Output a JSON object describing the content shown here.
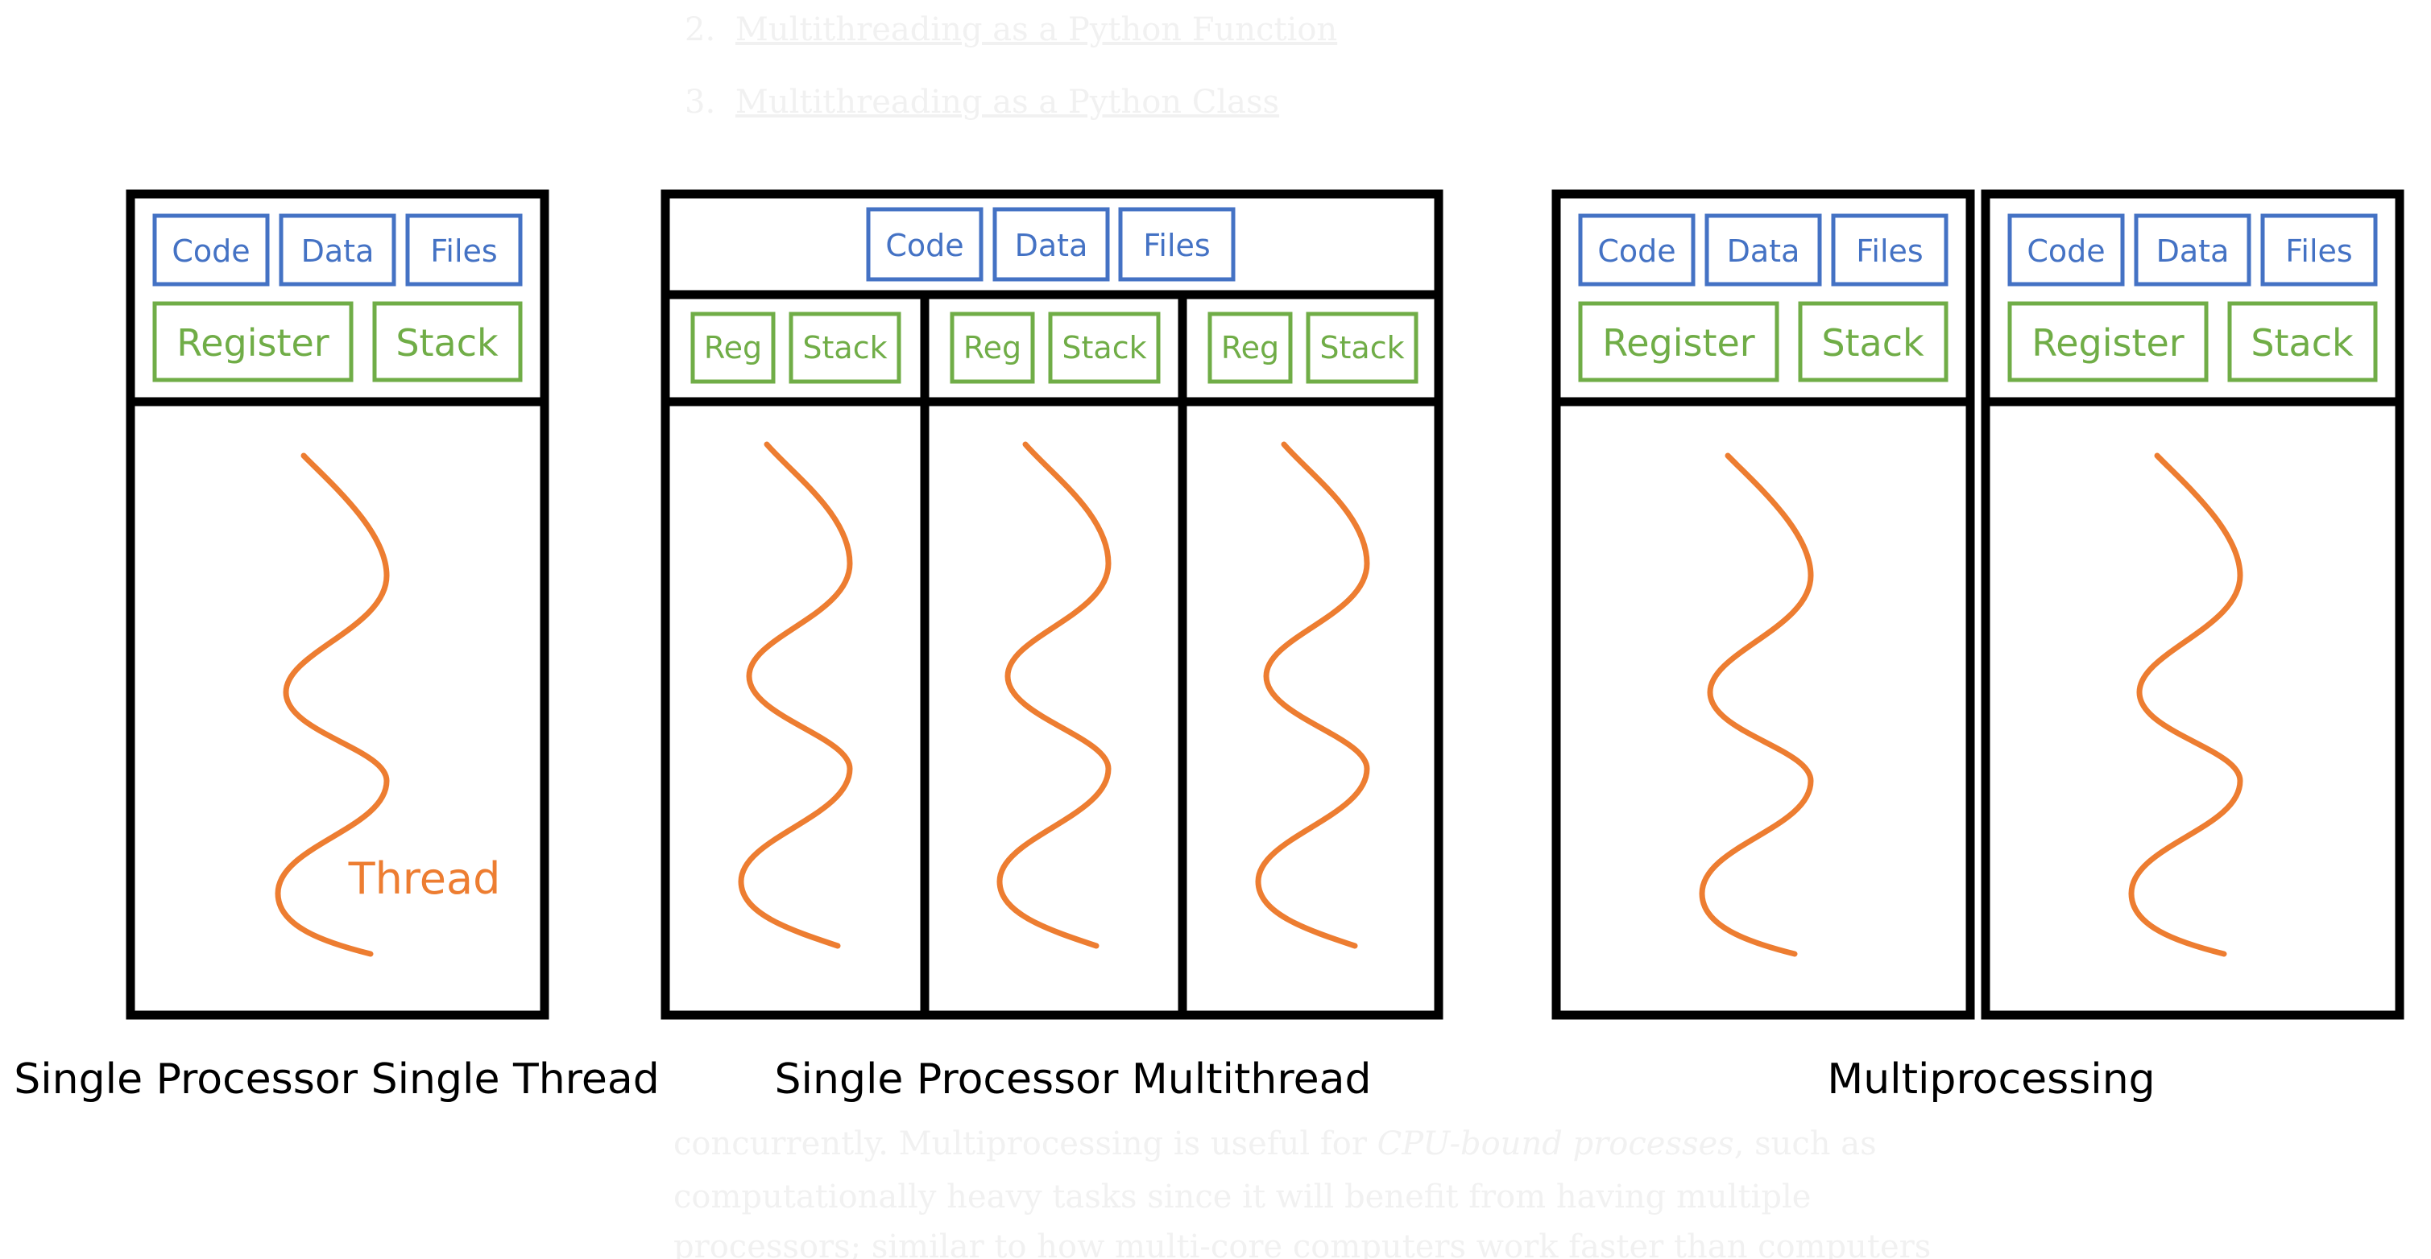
{
  "background": {
    "list": [
      {
        "num": "2.",
        "link": "Multithreading as a Python Function"
      },
      {
        "num": "3.",
        "link": "Multithreading as a Python Class"
      }
    ],
    "paragraph": [
      {
        "pre": "concurrently. Multiprocessing is useful for ",
        "em": "CPU-bound processes",
        "post": ", such as"
      },
      {
        "pre": "computationally heavy tasks since it will benefit from having multiple",
        "em": "",
        "post": ""
      },
      {
        "pre": "processors; similar to how multi-core computers work faster than computers",
        "em": "",
        "post": ""
      }
    ]
  },
  "labels": {
    "code": "Code",
    "data": "Data",
    "files": "Files",
    "register": "Register",
    "reg": "Reg",
    "stack": "Stack",
    "thread": "Thread"
  },
  "captions": {
    "single_thread": "Single Processor Single Thread",
    "multithread": "Single Processor Multithread",
    "multiprocessing": "Multiprocessing"
  },
  "colors": {
    "resource_blue": "#4472c4",
    "register_green": "#70ad47",
    "thread_orange": "#ed7d31"
  }
}
